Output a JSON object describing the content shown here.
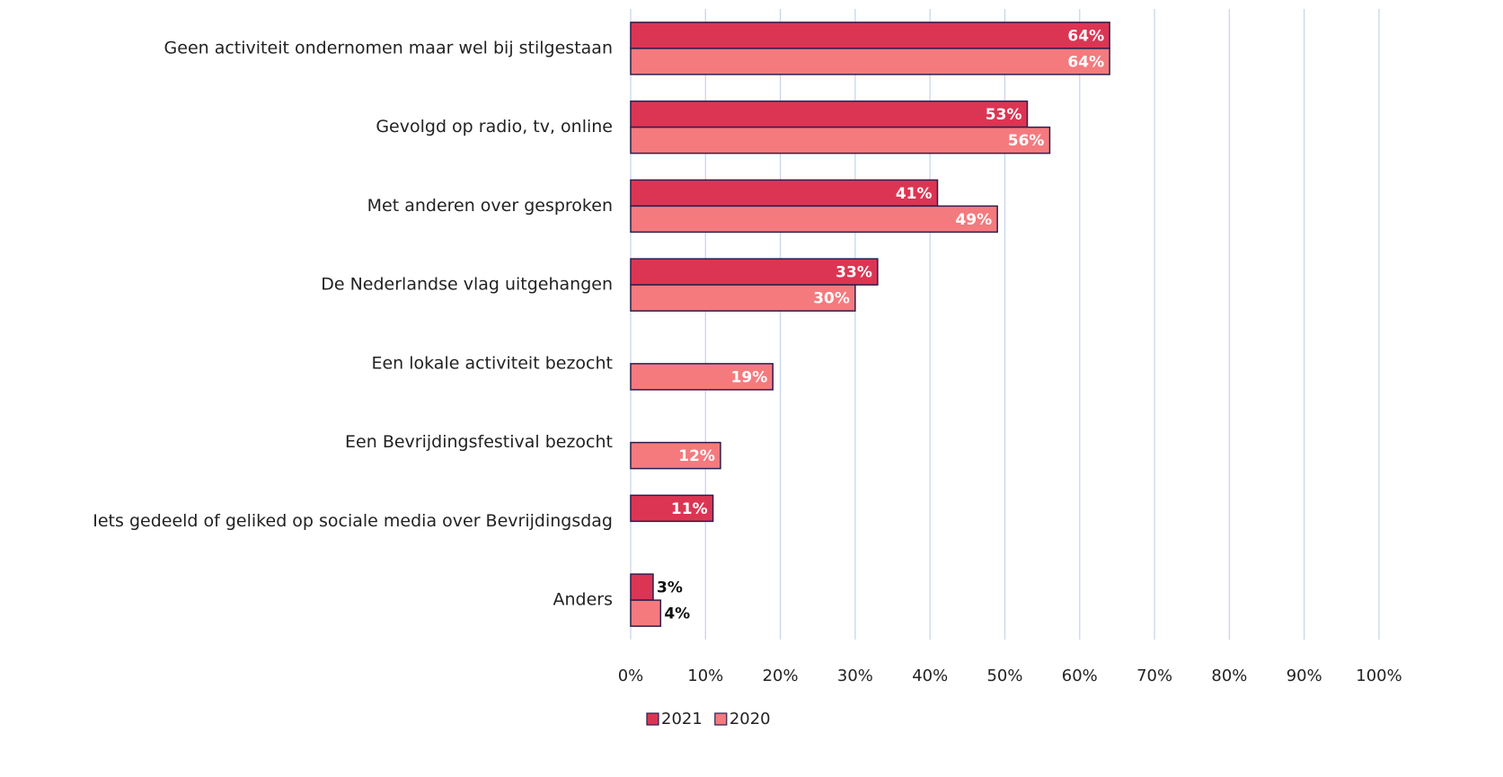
{
  "chart_data": {
    "type": "hbar",
    "categories": [
      "Geen activiteit ondernomen maar wel bij stilgestaan",
      "Gevolgd op radio, tv, online",
      "Met anderen over gesproken",
      "De Nederlandse vlag uitgehangen",
      "Een lokale activiteit bezocht",
      "Een Bevrijdingsfestival bezocht",
      "Iets gedeeld of geliked op sociale media over Bevrijdingsdag",
      "Anders"
    ],
    "series": [
      {
        "name": "2021",
        "color": "#dc3553",
        "values": [
          64,
          53,
          41,
          33,
          null,
          null,
          11,
          3
        ],
        "value_labels": [
          "64%",
          "53%",
          "41%",
          "33%",
          null,
          null,
          "11%",
          "3%"
        ]
      },
      {
        "name": "2020",
        "color": "#f47a7e",
        "values": [
          64,
          56,
          49,
          30,
          19,
          12,
          null,
          4
        ],
        "value_labels": [
          "64%",
          "56%",
          "49%",
          "30%",
          "19%",
          "12%",
          null,
          "4%"
        ]
      }
    ],
    "xlim": [
      0,
      100
    ],
    "xticks": [
      {
        "value": 0,
        "label": "0%"
      },
      {
        "value": 10,
        "label": "10%"
      },
      {
        "value": 20,
        "label": "20%"
      },
      {
        "value": 30,
        "label": "30%"
      },
      {
        "value": 40,
        "label": "40%"
      },
      {
        "value": 50,
        "label": "50%"
      },
      {
        "value": 60,
        "label": "60%"
      },
      {
        "value": 70,
        "label": "70%"
      },
      {
        "value": 80,
        "label": "80%"
      },
      {
        "value": 90,
        "label": "90%"
      },
      {
        "value": 100,
        "label": "100%"
      }
    ],
    "grid": true,
    "legend": "bottom"
  }
}
